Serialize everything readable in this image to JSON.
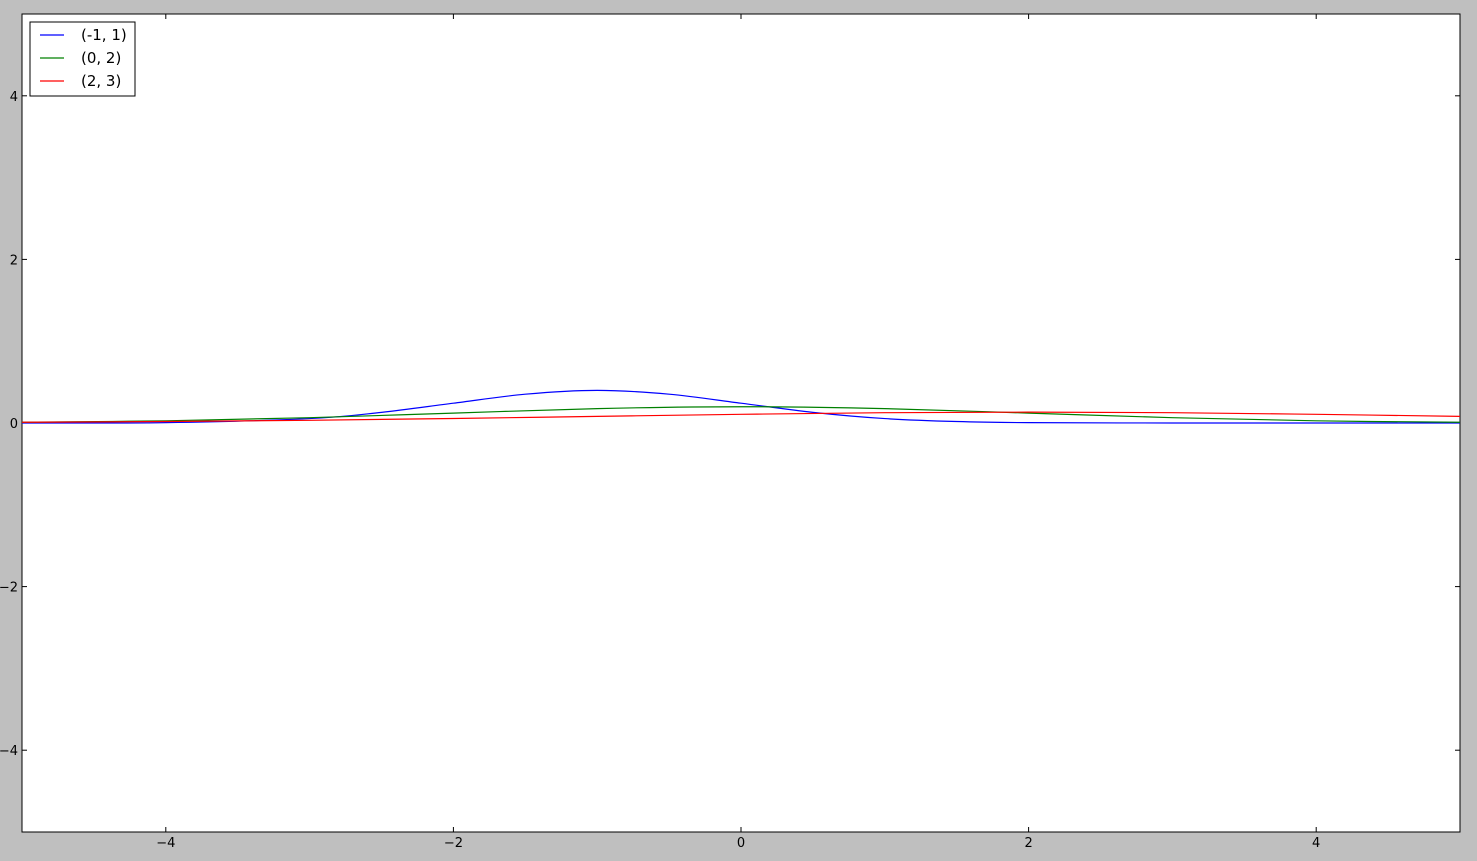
{
  "chart_data": {
    "type": "line",
    "title": "",
    "xlabel": "",
    "ylabel": "",
    "xlim": [
      -5,
      5
    ],
    "ylim": [
      -5,
      5
    ],
    "grid": false,
    "legend_position": "top-left",
    "xticks": [
      -4,
      -2,
      0,
      2,
      4
    ],
    "yticks": [
      -4,
      -2,
      0,
      2,
      4
    ],
    "xtick_labels": [
      "−4",
      "−2",
      "0",
      "2",
      "4"
    ],
    "ytick_labels": [
      "−4",
      "−2",
      "0",
      "2",
      "4"
    ],
    "series": [
      {
        "name": "(-1, 1)",
        "color": "#0000ff",
        "x": [
          -5,
          -4,
          -3,
          -2.5,
          -2,
          -1.5,
          -1,
          -0.5,
          0,
          0.5,
          1,
          1.5,
          2,
          3,
          4,
          5
        ],
        "y": [
          0.0001,
          0.0044,
          0.054,
          0.13,
          0.242,
          0.352,
          0.399,
          0.352,
          0.242,
          0.13,
          0.054,
          0.018,
          0.0044,
          0.0001,
          0.0,
          0.0
        ]
      },
      {
        "name": "(0, 2)",
        "color": "#008000",
        "x": [
          -5,
          -4,
          -3,
          -2,
          -1,
          0,
          1,
          2,
          3,
          4,
          5
        ],
        "y": [
          0.0088,
          0.027,
          0.065,
          0.121,
          0.176,
          0.199,
          0.176,
          0.121,
          0.065,
          0.027,
          0.0088
        ]
      },
      {
        "name": "(2, 3)",
        "color": "#ff0000",
        "x": [
          -5,
          -4,
          -3,
          -2,
          -1,
          0,
          1,
          2,
          3,
          4,
          5
        ],
        "y": [
          0.0088,
          0.018,
          0.033,
          0.055,
          0.081,
          0.106,
          0.126,
          0.133,
          0.126,
          0.106,
          0.081
        ]
      }
    ]
  }
}
